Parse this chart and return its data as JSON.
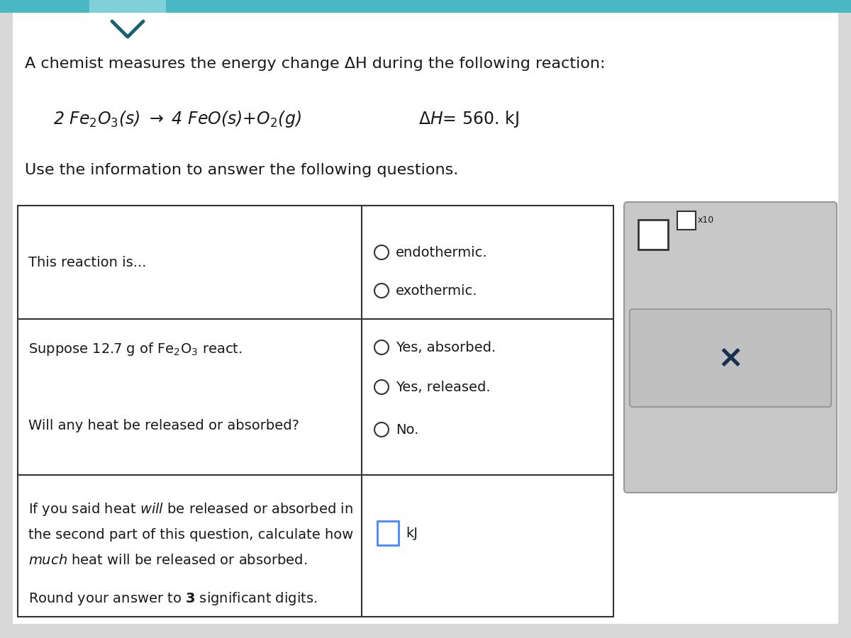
{
  "bg_color": "#d8d8d8",
  "top_bar_color": "#4ab8c4",
  "top_tab_color": "#7fd0d8",
  "white_color": "#ffffff",
  "border_color": "#333333",
  "text_color": "#1a1a1a",
  "blue_box_color": "#4488ff",
  "panel_bg": "#c8c8c8",
  "panel_border": "#999999",
  "x_button_bg": "#c0c0c0",
  "title_text": "A chemist measures the energy change ΔH during the following reaction:",
  "delta_h": "ΔH= 560. kJ",
  "use_info": "Use the information to answer the following questions.",
  "row1_left": "This reaction is...",
  "row1_right": [
    "endothermic.",
    "exothermic."
  ],
  "row2_left1": "Suppose 12.7 g of Fe₂O₃ react.",
  "row2_right": [
    "Yes, absorbed.",
    "Yes, released.",
    "No."
  ],
  "row2_left2": "Will any heat be released or absorbed?",
  "row3_right": "kJ",
  "font_size_title": 16,
  "font_size_body": 14,
  "font_size_reaction": 17
}
